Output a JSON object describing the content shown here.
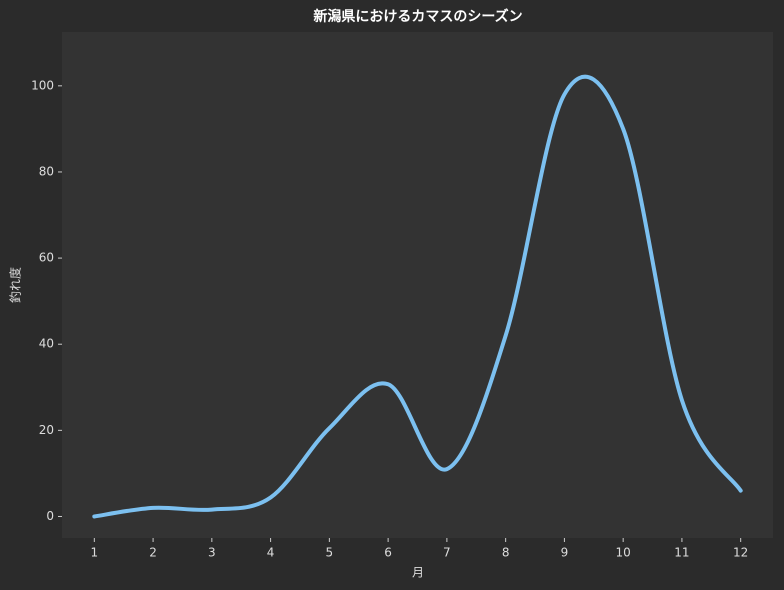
{
  "chart_data": {
    "type": "line",
    "title": "新潟県におけるカマスのシーズン",
    "x_label": "月",
    "y_label": "釣れ度",
    "x": [
      1,
      2,
      3,
      4,
      5,
      6,
      7,
      8,
      9,
      10,
      11,
      12
    ],
    "series": [
      {
        "color": "#7cc0f0",
        "values": [
          0,
          2,
          1.6,
          4.4,
          20.5,
          30.7,
          11,
          42,
          98,
          90,
          27,
          6
        ]
      }
    ],
    "xlim": [
      0.45,
      12.55
    ],
    "xticks": [
      1,
      2,
      3,
      4,
      5,
      6,
      7,
      8,
      9,
      10,
      11,
      12
    ],
    "ylim": [
      -5,
      112.5
    ],
    "yticks": [
      0,
      20,
      40,
      60,
      80,
      100
    ],
    "grid": false
  }
}
